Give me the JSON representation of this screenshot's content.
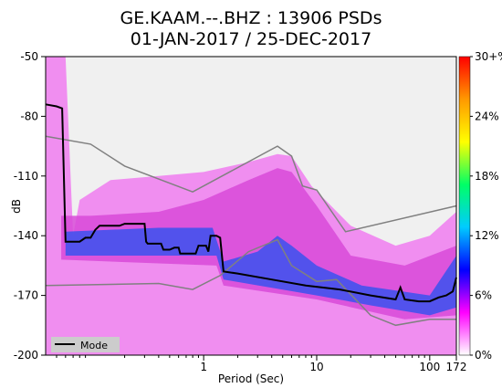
{
  "chart_data": {
    "type": "heatmap",
    "title": "GE.KAAM.--.BHZ : 13906 PSDs",
    "subtitle": "01-JAN-2017 / 25-DEC-2017",
    "xlabel": "Period (Sec)",
    "ylabel": "dB",
    "x_scale": "log",
    "xlim": [
      0.04,
      172
    ],
    "ylim": [
      -200,
      -50
    ],
    "x_tick_labels": [
      "1",
      "10",
      "100",
      "172"
    ],
    "x_ticks": [
      1,
      10,
      100,
      172
    ],
    "y_tick_labels": [
      "-50",
      "-80",
      "-110",
      "-140",
      "-170",
      "-200"
    ],
    "y_ticks": [
      -50,
      -80,
      -110,
      -140,
      -170,
      -200
    ],
    "colorbar": {
      "tick_labels": [
        "30+%",
        "24%",
        "18%",
        "12%",
        "6%",
        "0%"
      ],
      "ticks": [
        30,
        24,
        18,
        12,
        6,
        0
      ],
      "colors": [
        "#ff0000",
        "#ff9900",
        "#ffff00",
        "#00ff66",
        "#00ccff",
        "#0000ff",
        "#ff00ff",
        "#ffffff"
      ]
    },
    "legend": {
      "position": "bottom-left",
      "entries": [
        "Mode"
      ]
    },
    "series": [
      {
        "name": "Mode",
        "color": "#000000",
        "points": [
          [
            0.04,
            -74
          ],
          [
            0.05,
            -75
          ],
          [
            0.056,
            -76
          ],
          [
            0.06,
            -143
          ],
          [
            0.08,
            -143
          ],
          [
            0.09,
            -141
          ],
          [
            0.1,
            -141
          ],
          [
            0.11,
            -137
          ],
          [
            0.12,
            -135
          ],
          [
            0.18,
            -135
          ],
          [
            0.2,
            -134
          ],
          [
            0.3,
            -134
          ],
          [
            0.31,
            -143
          ],
          [
            0.32,
            -144
          ],
          [
            0.42,
            -144
          ],
          [
            0.44,
            -147
          ],
          [
            0.5,
            -147
          ],
          [
            0.55,
            -146
          ],
          [
            0.6,
            -146
          ],
          [
            0.62,
            -149
          ],
          [
            0.85,
            -149
          ],
          [
            0.9,
            -145
          ],
          [
            1.05,
            -145
          ],
          [
            1.1,
            -148
          ],
          [
            1.15,
            -140
          ],
          [
            1.3,
            -140
          ],
          [
            1.4,
            -141
          ],
          [
            1.5,
            -158
          ],
          [
            2,
            -159
          ],
          [
            4,
            -162
          ],
          [
            8,
            -165
          ],
          [
            16,
            -167
          ],
          [
            30,
            -170
          ],
          [
            50,
            -172
          ],
          [
            55,
            -166
          ],
          [
            60,
            -172
          ],
          [
            80,
            -173
          ],
          [
            100,
            -173
          ],
          [
            120,
            -171
          ],
          [
            140,
            -170
          ],
          [
            160,
            -168
          ],
          [
            172,
            -161
          ]
        ]
      },
      {
        "name": "",
        "color": "#808080",
        "points": [
          [
            0.04,
            -90
          ],
          [
            0.1,
            -94
          ],
          [
            0.2,
            -105
          ],
          [
            0.8,
            -118
          ],
          [
            4.5,
            -95
          ],
          [
            6,
            -100
          ],
          [
            7.5,
            -115
          ],
          [
            10,
            -117
          ],
          [
            18,
            -138
          ],
          [
            172,
            -125
          ]
        ]
      },
      {
        "name": "",
        "color": "#808080",
        "points": [
          [
            0.04,
            -165
          ],
          [
            0.4,
            -164
          ],
          [
            0.8,
            -167
          ],
          [
            1.4,
            -160
          ],
          [
            2.5,
            -148
          ],
          [
            4.5,
            -142
          ],
          [
            6,
            -155
          ],
          [
            10,
            -163
          ],
          [
            15,
            -162
          ],
          [
            30,
            -180
          ],
          [
            50,
            -185
          ],
          [
            100,
            -182
          ],
          [
            172,
            -182
          ]
        ]
      }
    ],
    "density_bands": [
      {
        "level": 1,
        "upper": [
          [
            0.04,
            -50
          ],
          [
            0.06,
            -50
          ],
          [
            0.07,
            -140
          ],
          [
            0.08,
            -122
          ],
          [
            0.15,
            -112
          ],
          [
            0.4,
            -110
          ],
          [
            1,
            -108
          ],
          [
            2.5,
            -103
          ],
          [
            4.5,
            -99
          ],
          [
            6,
            -100
          ],
          [
            9,
            -115
          ],
          [
            20,
            -135
          ],
          [
            50,
            -145
          ],
          [
            100,
            -140
          ],
          [
            172,
            -128
          ]
        ],
        "lower": [
          [
            172,
            -200
          ],
          [
            0.04,
            -200
          ]
        ]
      },
      {
        "level": 2,
        "upper": [
          [
            0.055,
            -130
          ],
          [
            0.1,
            -130
          ],
          [
            0.4,
            -128
          ],
          [
            1,
            -122
          ],
          [
            2.5,
            -112
          ],
          [
            4.5,
            -106
          ],
          [
            6,
            -108
          ],
          [
            10,
            -125
          ],
          [
            20,
            -150
          ],
          [
            60,
            -155
          ],
          [
            172,
            -145
          ]
        ],
        "lower": [
          [
            172,
            -180
          ],
          [
            60,
            -182
          ],
          [
            10,
            -172
          ],
          [
            1.5,
            -165
          ],
          [
            1.3,
            -155
          ],
          [
            0.055,
            -152
          ]
        ]
      },
      {
        "level": 3,
        "upper": [
          [
            0.06,
            -138
          ],
          [
            0.4,
            -136
          ],
          [
            1.2,
            -136
          ],
          [
            1.5,
            -153
          ],
          [
            3,
            -148
          ],
          [
            4.5,
            -140
          ],
          [
            6,
            -145
          ],
          [
            10,
            -155
          ],
          [
            25,
            -165
          ],
          [
            100,
            -170
          ],
          [
            172,
            -150
          ]
        ],
        "lower": [
          [
            172,
            -176
          ],
          [
            100,
            -180
          ],
          [
            30,
            -175
          ],
          [
            10,
            -170
          ],
          [
            1.5,
            -162
          ],
          [
            1.3,
            -150
          ],
          [
            0.06,
            -150
          ]
        ]
      }
    ]
  }
}
